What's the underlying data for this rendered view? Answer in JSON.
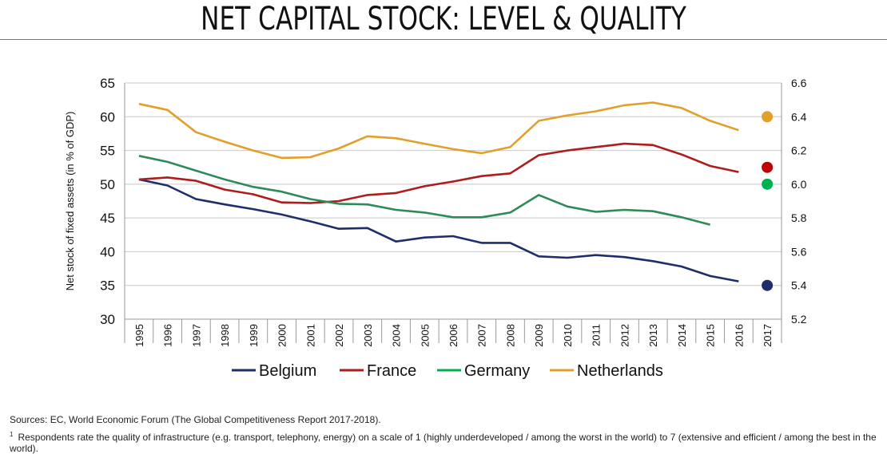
{
  "title": "NET CAPITAL STOCK: LEVEL & QUALITY",
  "chart_data": {
    "type": "line",
    "xlabel": "",
    "ylabel": "Net stock of fixed assets (in % of GDP)",
    "ylim": [
      30,
      65
    ],
    "yticks": [
      "30",
      "35",
      "40",
      "45",
      "50",
      "55",
      "60",
      "65"
    ],
    "y2lim": [
      5.2,
      6.6
    ],
    "y2ticks": [
      "5.2",
      "5.4",
      "5.6",
      "5.8",
      "6.0",
      "6.2",
      "6.4",
      "6.6"
    ],
    "grid": true,
    "categories": [
      "1995",
      "1996",
      "1997",
      "1998",
      "1999",
      "2000",
      "2001",
      "2002",
      "2003",
      "2004",
      "2005",
      "2006",
      "2007",
      "2008",
      "2009",
      "2010",
      "2011",
      "2012",
      "2013",
      "2014",
      "2015",
      "2016",
      "2017"
    ],
    "series": [
      {
        "name": "Belgium",
        "color": "#1f2d6b",
        "values": [
          50.7,
          49.8,
          47.8,
          47.0,
          46.3,
          45.5,
          44.5,
          43.4,
          43.5,
          41.5,
          42.1,
          42.3,
          41.3,
          41.3,
          39.3,
          39.1,
          39.5,
          39.2,
          38.6,
          37.8,
          36.4,
          35.6,
          null
        ],
        "quality_2017": 5.4
      },
      {
        "name": "France",
        "color": "#b01c1c",
        "values": [
          50.7,
          51.0,
          50.5,
          49.2,
          48.5,
          47.3,
          47.2,
          47.5,
          48.4,
          48.7,
          49.7,
          50.4,
          51.2,
          51.6,
          54.3,
          55.0,
          55.5,
          56.0,
          55.8,
          54.4,
          52.7,
          51.8,
          null
        ],
        "quality_2017": 6.1
      },
      {
        "name": "Germany",
        "color": "#2e8b57",
        "values": [
          54.2,
          53.3,
          52.0,
          50.7,
          49.6,
          48.9,
          47.8,
          47.1,
          47.0,
          46.2,
          45.8,
          45.1,
          45.1,
          45.8,
          48.4,
          46.7,
          45.9,
          46.2,
          46.0,
          45.1,
          44.0,
          null,
          null
        ],
        "quality_2017": 6.0
      },
      {
        "name": "Netherlands",
        "color": "#e0a02a",
        "values": [
          61.9,
          61.0,
          57.7,
          56.3,
          55.0,
          53.9,
          54.0,
          55.3,
          57.1,
          56.8,
          56.0,
          55.2,
          54.6,
          55.5,
          59.4,
          60.2,
          60.8,
          61.7,
          62.1,
          61.3,
          59.4,
          58.0,
          null
        ],
        "quality_2017": 6.4
      }
    ],
    "legend": {
      "position": "bottom-center",
      "marker_colors": {
        "Germany": "#00b050"
      }
    },
    "quality_marker_colors": {
      "Belgium": "#1f2d6b",
      "France": "#c00000",
      "Germany": "#00b050",
      "Netherlands": "#e0a02a"
    }
  },
  "footer": {
    "sources": "Sources: EC, World Economic Forum (The Global Competitiveness Report 2017-2018).",
    "footnote_mark": "1",
    "footnote": "Respondents rate the quality of infrastructure (e.g. transport, telephony, energy) on a scale of 1 (highly underdeveloped / among the worst in the world) to 7 (extensive and efficient / among the best in the world)."
  }
}
